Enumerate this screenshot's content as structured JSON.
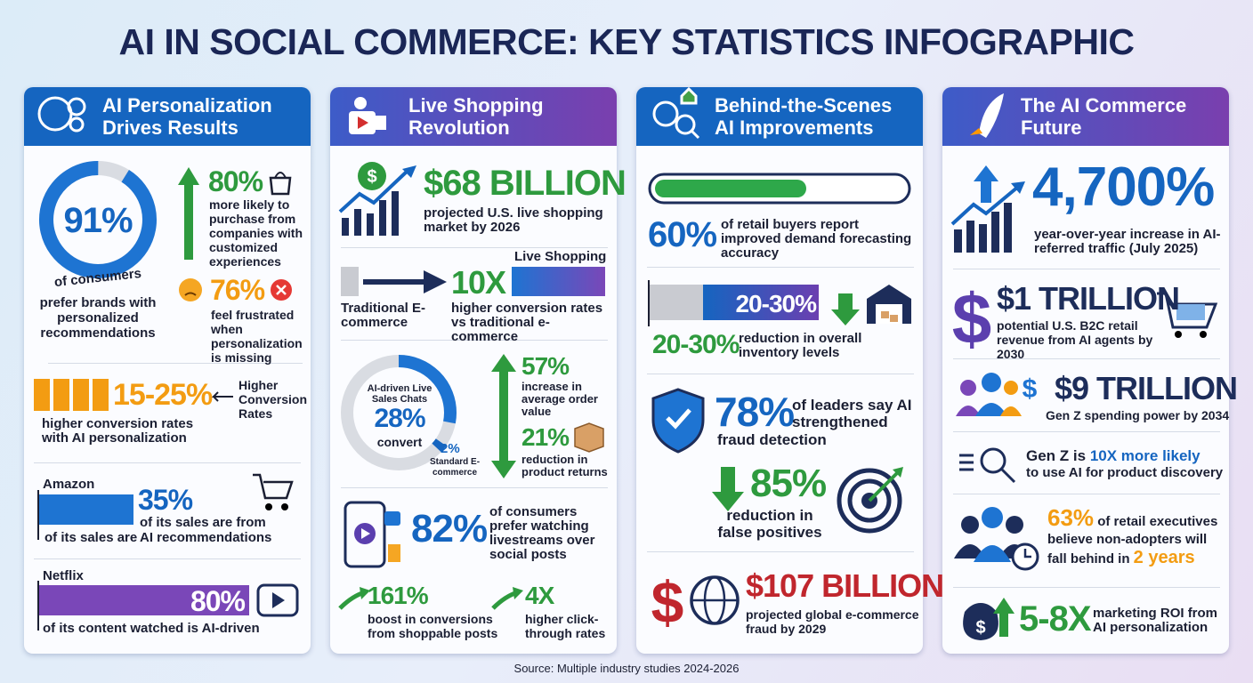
{
  "title": "AI IN SOCIAL COMMERCE: KEY STATISTICS INFOGRAPHIC",
  "source": "Source: Multiple industry studies 2024-2026",
  "panels": [
    {
      "heading": "AI Personalization Drives Results",
      "donut": {
        "value": "91%",
        "caption": "of consumers",
        "text": "prefer brands with personalized recommendations"
      },
      "stats": [
        {
          "value": "80%",
          "text": "more likely to purchase from companies with customized experiences"
        },
        {
          "value": "76%",
          "text": "feel frustrated when personalization is missing"
        }
      ],
      "conversion": {
        "value": "15-25%",
        "label": "Higher Conversion Rates",
        "text": "higher conversion rates with AI personalization"
      },
      "amazon": {
        "name": "Amazon",
        "value": "35%",
        "text": "of its sales are from",
        "text_lower": "of its sales are",
        "text_end": "AI recommendations"
      },
      "netflix": {
        "name": "Netflix",
        "value": "80%",
        "text": "of its content watched is AI-driven"
      }
    },
    {
      "heading": "Live Shopping Revolution",
      "market": {
        "value": "$68 BILLION",
        "text": "projected U.S. live shopping market by 2026"
      },
      "comparison": {
        "left": "Traditional E-commerce",
        "value": "10X",
        "right": "Live Shopping",
        "text": "higher conversion rates vs traditional e-commerce"
      },
      "donut": {
        "label": "AI-driven Live Sales Chats",
        "value": "28%",
        "caption": "convert",
        "other_value": "2%",
        "other_label": "Standard E-commerce"
      },
      "stats": [
        {
          "value": "57%",
          "text": "increase in average order value"
        },
        {
          "value": "21%",
          "text": "reduction in product returns"
        }
      ],
      "livestream": {
        "value": "82%",
        "text": "of consumers prefer watching livestreams over social posts"
      },
      "bottom": [
        {
          "value": "161%",
          "text": "boost in conversions from shoppable posts"
        },
        {
          "value": "4X",
          "text": "higher click-through rates"
        }
      ]
    },
    {
      "heading": "Behind-the-Scenes AI Improvements",
      "forecast": {
        "value": "60%",
        "text": "of retail buyers report improved demand forecasting accuracy"
      },
      "inventory": {
        "bar_label": "20-30%",
        "value": "20-30%",
        "text": "reduction in overall inventory levels"
      },
      "fraud": {
        "value": "78%",
        "text": "of leaders say AI strengthened",
        "text_end": "fraud detection"
      },
      "false_positives": {
        "value": "85%",
        "text": "reduction in false positives"
      },
      "global_fraud": {
        "value": "$107 BILLION",
        "text": "projected global e-commerce fraud by 2029"
      }
    },
    {
      "heading": "The AI Commerce Future",
      "traffic": {
        "value": "4,700%",
        "text": "year-over-year increase in AI-referred traffic (July 2025)"
      },
      "revenue": {
        "value": "$1 TRILLION",
        "text": "potential U.S. B2C retail revenue from AI agents by 2030"
      },
      "genz_spending": {
        "value": "$9 TRILLION",
        "text": "Gen Z spending power by 2034"
      },
      "genz_ai": {
        "lead": "Gen Z is",
        "highlight": "10X more likely",
        "text": "to use AI for product discovery"
      },
      "executives": {
        "value": "63%",
        "text": "of retail executives believe non-adopters will fall behind in",
        "highlight": "2 years"
      },
      "roi": {
        "value": "5-8X",
        "text": "marketing ROI from AI personalization"
      }
    }
  ]
}
